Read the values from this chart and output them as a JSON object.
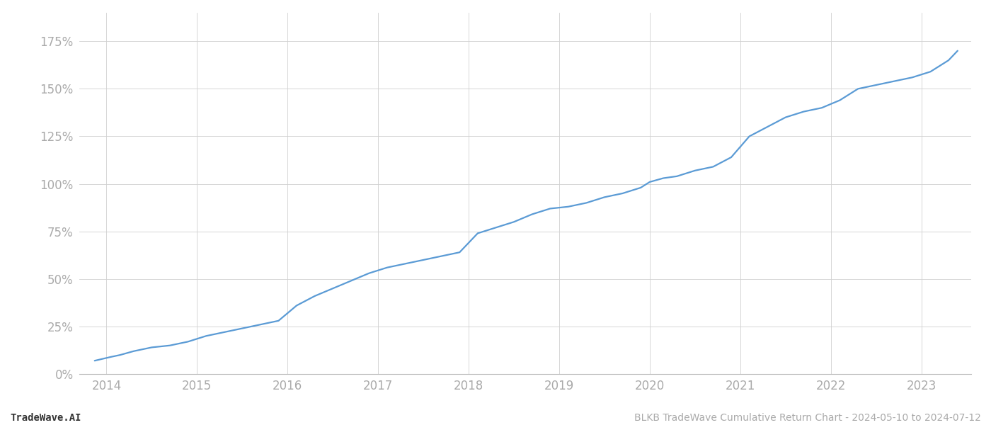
{
  "title": "BLKB TradeWave Cumulative Return Chart - 2024-05-10 to 2024-07-12",
  "watermark": "TradeWave.AI",
  "line_color": "#5b9bd5",
  "background_color": "#ffffff",
  "grid_color": "#d0d0d0",
  "x_years": [
    2014,
    2015,
    2016,
    2017,
    2018,
    2019,
    2020,
    2021,
    2022,
    2023
  ],
  "x_data": [
    2013.87,
    2014.05,
    2014.15,
    2014.3,
    2014.5,
    2014.7,
    2014.9,
    2015.1,
    2015.3,
    2015.5,
    2015.7,
    2015.9,
    2016.1,
    2016.3,
    2016.5,
    2016.7,
    2016.9,
    2017.1,
    2017.3,
    2017.5,
    2017.7,
    2017.9,
    2018.1,
    2018.3,
    2018.5,
    2018.7,
    2018.9,
    2019.1,
    2019.3,
    2019.5,
    2019.7,
    2019.9,
    2020.0,
    2020.15,
    2020.3,
    2020.5,
    2020.7,
    2020.9,
    2021.1,
    2021.3,
    2021.5,
    2021.7,
    2021.9,
    2022.1,
    2022.3,
    2022.5,
    2022.7,
    2022.9,
    2023.1,
    2023.3,
    2023.4
  ],
  "y_data": [
    0.07,
    0.09,
    0.1,
    0.12,
    0.14,
    0.15,
    0.17,
    0.2,
    0.22,
    0.24,
    0.26,
    0.28,
    0.36,
    0.41,
    0.45,
    0.49,
    0.53,
    0.56,
    0.58,
    0.6,
    0.62,
    0.64,
    0.74,
    0.77,
    0.8,
    0.84,
    0.87,
    0.88,
    0.9,
    0.93,
    0.95,
    0.98,
    1.01,
    1.03,
    1.04,
    1.07,
    1.09,
    1.14,
    1.25,
    1.3,
    1.35,
    1.38,
    1.4,
    1.44,
    1.5,
    1.52,
    1.54,
    1.56,
    1.59,
    1.65,
    1.7
  ],
  "ylim": [
    0.0,
    1.9
  ],
  "yticks": [
    0.0,
    0.25,
    0.5,
    0.75,
    1.0,
    1.25,
    1.5,
    1.75
  ],
  "ytick_labels": [
    "0%",
    "25%",
    "50%",
    "75%",
    "100%",
    "125%",
    "150%",
    "175%"
  ],
  "xlim": [
    2013.7,
    2023.55
  ],
  "title_fontsize": 10,
  "watermark_fontsize": 10,
  "tick_fontsize": 12,
  "tick_color": "#aaaaaa",
  "axis_color": "#bbbbbb",
  "line_width": 1.6
}
